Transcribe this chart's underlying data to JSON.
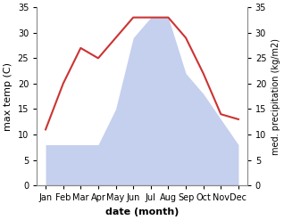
{
  "months": [
    "Jan",
    "Feb",
    "Mar",
    "Apr",
    "May",
    "Jun",
    "Jul",
    "Aug",
    "Sep",
    "Oct",
    "Nov",
    "Dec"
  ],
  "temperature": [
    11,
    20,
    27,
    25,
    29,
    33,
    33,
    33,
    29,
    22,
    14,
    13
  ],
  "precipitation": [
    8,
    8,
    8,
    8,
    15,
    29,
    33,
    33,
    22,
    18,
    13,
    8
  ],
  "temp_color": "#cc3333",
  "precip_color": "#c5cfee",
  "left_ylabel": "max temp (C)",
  "right_ylabel": "med. precipitation (kg/m2)",
  "xlabel": "date (month)",
  "ylim": [
    0,
    35
  ],
  "yticks": [
    0,
    5,
    10,
    15,
    20,
    25,
    30,
    35
  ],
  "background_color": "#ffffff"
}
